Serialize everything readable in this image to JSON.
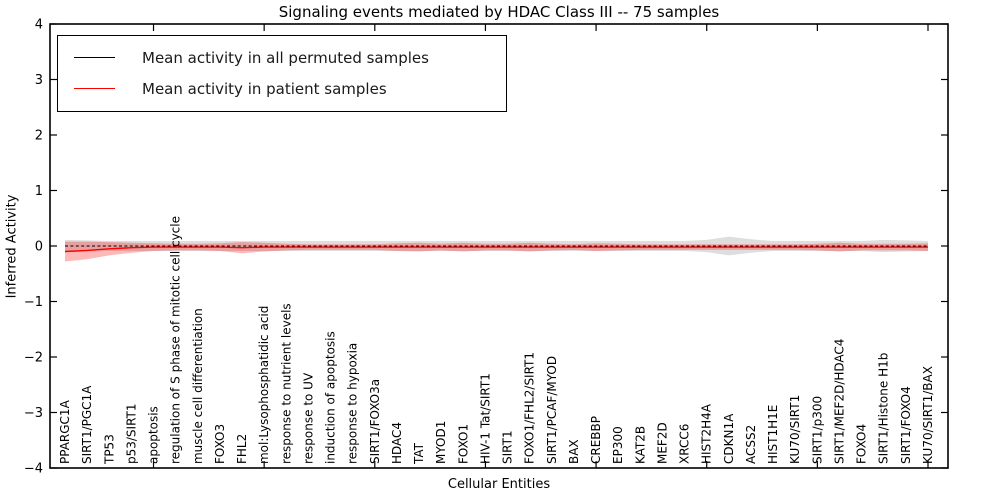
{
  "window": {
    "title": "Signaling events mediated by HDAC Class III -- 75 samples"
  },
  "legend": {
    "items": [
      {
        "label": "Mean activity in all permuted samples",
        "color": "#000000"
      },
      {
        "label": "Mean activity in patient samples",
        "color": "#ff0000"
      }
    ]
  },
  "colors": {
    "permuted_line": "#000000",
    "patient_line": "#ff0000",
    "permuted_band": "rgba(0,0,0,0.13)",
    "patient_band": "rgba(255,0,0,0.28)",
    "axis": "#000000"
  },
  "chart_data": {
    "type": "line",
    "title": "Signaling events mediated by HDAC Class III -- 75 samples",
    "xlabel": "Cellular Entities",
    "ylabel": "Inferred Activity",
    "ylim": [
      -4,
      4
    ],
    "yticks": [
      -4,
      -3,
      -2,
      -1,
      0,
      1,
      2,
      3,
      4
    ],
    "grid": false,
    "legend_position": "upper left",
    "categories": [
      "PPARGC1A",
      "SIRT1/PGC1A",
      "TP53",
      "p53/SIRT1",
      "apoptosis",
      "regulation of S phase of mitotic cell cycle",
      "muscle cell differentiation",
      "FOXO3",
      "FHL2",
      "mol:Lysophosphatidic acid",
      "response to nutrient levels",
      "response to UV",
      "induction of apoptosis",
      "response to hypoxia",
      "SIRT1/FOXO3a",
      "HDAC4",
      "TAT",
      "MYOD1",
      "FOXO1",
      "HIV-1 Tat/SIRT1",
      "SIRT1",
      "FOXO1/FHL2/SIRT1",
      "SIRT1/PCAF/MYOD",
      "BAX",
      "CREBBP",
      "EP300",
      "KAT2B",
      "MEF2D",
      "XRCC6",
      "HIST2H4A",
      "CDKN1A",
      "ACSS2",
      "HIST1H1E",
      "KU70/SIRT1",
      "SIRT1/p300",
      "SIRT1/MEF2D/HDAC4",
      "FOXO4",
      "SIRT1/Histone H1b",
      "SIRT1/FOXO4",
      "KU70/SIRT1/BAX"
    ],
    "series": [
      {
        "name": "Mean activity in all permuted samples",
        "style": "dashed",
        "values": [
          0,
          0,
          0,
          0,
          0,
          0,
          0,
          0,
          0,
          0,
          0,
          0,
          0,
          0,
          0,
          0,
          0,
          0,
          0,
          0,
          0,
          0,
          0,
          0,
          0,
          0,
          0,
          0,
          0,
          0,
          0,
          0,
          0,
          0,
          0,
          0,
          0,
          0,
          0,
          0
        ],
        "band": [
          0.11,
          0.1,
          0.09,
          0.09,
          0.09,
          0.09,
          0.09,
          0.09,
          0.09,
          0.09,
          0.09,
          0.09,
          0.09,
          0.09,
          0.09,
          0.09,
          0.09,
          0.09,
          0.09,
          0.09,
          0.09,
          0.09,
          0.09,
          0.09,
          0.09,
          0.09,
          0.09,
          0.09,
          0.09,
          0.11,
          0.17,
          0.12,
          0.09,
          0.09,
          0.09,
          0.09,
          0.09,
          0.11,
          0.1,
          0.09
        ]
      },
      {
        "name": "Mean activity in patient samples",
        "style": "solid",
        "values": [
          -0.1,
          -0.08,
          -0.05,
          -0.03,
          -0.02,
          -0.02,
          -0.02,
          -0.02,
          -0.03,
          -0.02,
          -0.02,
          -0.02,
          -0.02,
          -0.02,
          -0.02,
          -0.02,
          -0.02,
          -0.02,
          -0.02,
          -0.02,
          -0.02,
          -0.02,
          -0.02,
          -0.02,
          -0.02,
          -0.02,
          -0.02,
          -0.02,
          -0.02,
          -0.02,
          -0.02,
          -0.02,
          -0.02,
          -0.02,
          -0.02,
          -0.02,
          -0.02,
          -0.02,
          -0.02,
          -0.02
        ],
        "band": [
          0.18,
          0.16,
          0.12,
          0.09,
          0.07,
          0.06,
          0.06,
          0.07,
          0.1,
          0.08,
          0.06,
          0.05,
          0.05,
          0.05,
          0.05,
          0.07,
          0.08,
          0.06,
          0.08,
          0.06,
          0.06,
          0.08,
          0.06,
          0.05,
          0.07,
          0.06,
          0.05,
          0.05,
          0.05,
          0.05,
          0.05,
          0.05,
          0.05,
          0.05,
          0.06,
          0.08,
          0.06,
          0.06,
          0.06,
          0.07
        ]
      }
    ]
  }
}
